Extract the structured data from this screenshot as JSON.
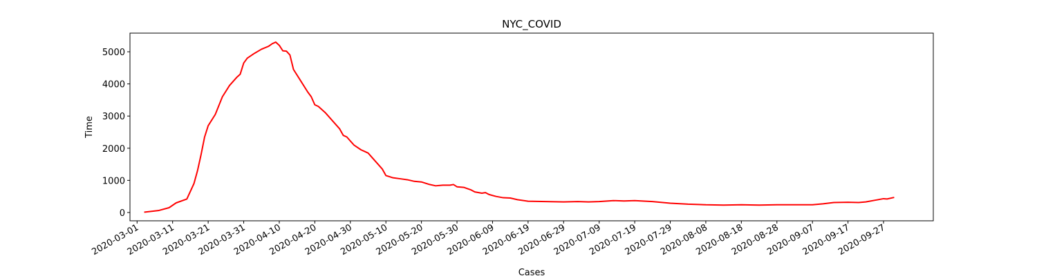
{
  "chart_data": {
    "type": "line",
    "title": "NYC_COVID",
    "xlabel": "Cases",
    "ylabel": "Time",
    "color": "#ff0000",
    "x": [
      "2020-03-03",
      "2020-03-07",
      "2020-03-10",
      "2020-03-12",
      "2020-03-15",
      "2020-03-17",
      "2020-03-18",
      "2020-03-19",
      "2020-03-20",
      "2020-03-21",
      "2020-03-23",
      "2020-03-25",
      "2020-03-27",
      "2020-03-29",
      "2020-03-30",
      "2020-03-31",
      "2020-04-01",
      "2020-04-03",
      "2020-04-05",
      "2020-04-07",
      "2020-04-08",
      "2020-04-09",
      "2020-04-10",
      "2020-04-11",
      "2020-04-12",
      "2020-04-13",
      "2020-04-14",
      "2020-04-16",
      "2020-04-18",
      "2020-04-19",
      "2020-04-20",
      "2020-04-21",
      "2020-04-23",
      "2020-04-25",
      "2020-04-27",
      "2020-04-28",
      "2020-04-29",
      "2020-05-01",
      "2020-05-03",
      "2020-05-04",
      "2020-05-05",
      "2020-05-07",
      "2020-05-09",
      "2020-05-10",
      "2020-05-12",
      "2020-05-14",
      "2020-05-16",
      "2020-05-18",
      "2020-05-20",
      "2020-05-22",
      "2020-05-24",
      "2020-05-26",
      "2020-05-28",
      "2020-05-29",
      "2020-05-30",
      "2020-06-01",
      "2020-06-03",
      "2020-06-04",
      "2020-06-06",
      "2020-06-07",
      "2020-06-08",
      "2020-06-10",
      "2020-06-12",
      "2020-06-14",
      "2020-06-16",
      "2020-06-19",
      "2020-06-24",
      "2020-06-29",
      "2020-07-03",
      "2020-07-06",
      "2020-07-09",
      "2020-07-13",
      "2020-07-16",
      "2020-07-19",
      "2020-07-24",
      "2020-07-29",
      "2020-08-03",
      "2020-08-06",
      "2020-08-08",
      "2020-08-13",
      "2020-08-18",
      "2020-08-23",
      "2020-08-28",
      "2020-09-02",
      "2020-09-07",
      "2020-09-10",
      "2020-09-13",
      "2020-09-17",
      "2020-09-20",
      "2020-09-22",
      "2020-09-25",
      "2020-09-27",
      "2020-09-28",
      "2020-09-30"
    ],
    "values": [
      10,
      60,
      150,
      300,
      420,
      900,
      1300,
      1800,
      2350,
      2700,
      3050,
      3600,
      3950,
      4200,
      4300,
      4650,
      4800,
      4950,
      5080,
      5170,
      5250,
      5300,
      5200,
      5030,
      5020,
      4900,
      4450,
      4100,
      3750,
      3600,
      3350,
      3300,
      3100,
      2850,
      2600,
      2400,
      2350,
      2100,
      1950,
      1900,
      1850,
      1600,
      1350,
      1150,
      1080,
      1050,
      1020,
      970,
      950,
      880,
      830,
      850,
      850,
      870,
      800,
      780,
      700,
      640,
      600,
      620,
      560,
      500,
      460,
      450,
      400,
      350,
      340,
      330,
      340,
      330,
      340,
      370,
      360,
      370,
      340,
      290,
      260,
      250,
      240,
      230,
      240,
      230,
      240,
      240,
      240,
      270,
      310,
      320,
      310,
      330,
      390,
      430,
      420,
      470
    ],
    "xlim": [
      "2020-02-28",
      "2020-10-11"
    ],
    "xticks": [
      "2020-03-01",
      "2020-03-11",
      "2020-03-21",
      "2020-03-31",
      "2020-04-10",
      "2020-04-20",
      "2020-04-30",
      "2020-05-10",
      "2020-05-20",
      "2020-05-30",
      "2020-06-09",
      "2020-06-19",
      "2020-06-29",
      "2020-07-09",
      "2020-07-19",
      "2020-07-29",
      "2020-08-08",
      "2020-08-18",
      "2020-08-28",
      "2020-09-07",
      "2020-09-17",
      "2020-09-27"
    ],
    "ylim": [
      -258,
      5580
    ],
    "yticks": [
      0,
      1000,
      2000,
      3000,
      4000,
      5000
    ],
    "grid": false
  }
}
